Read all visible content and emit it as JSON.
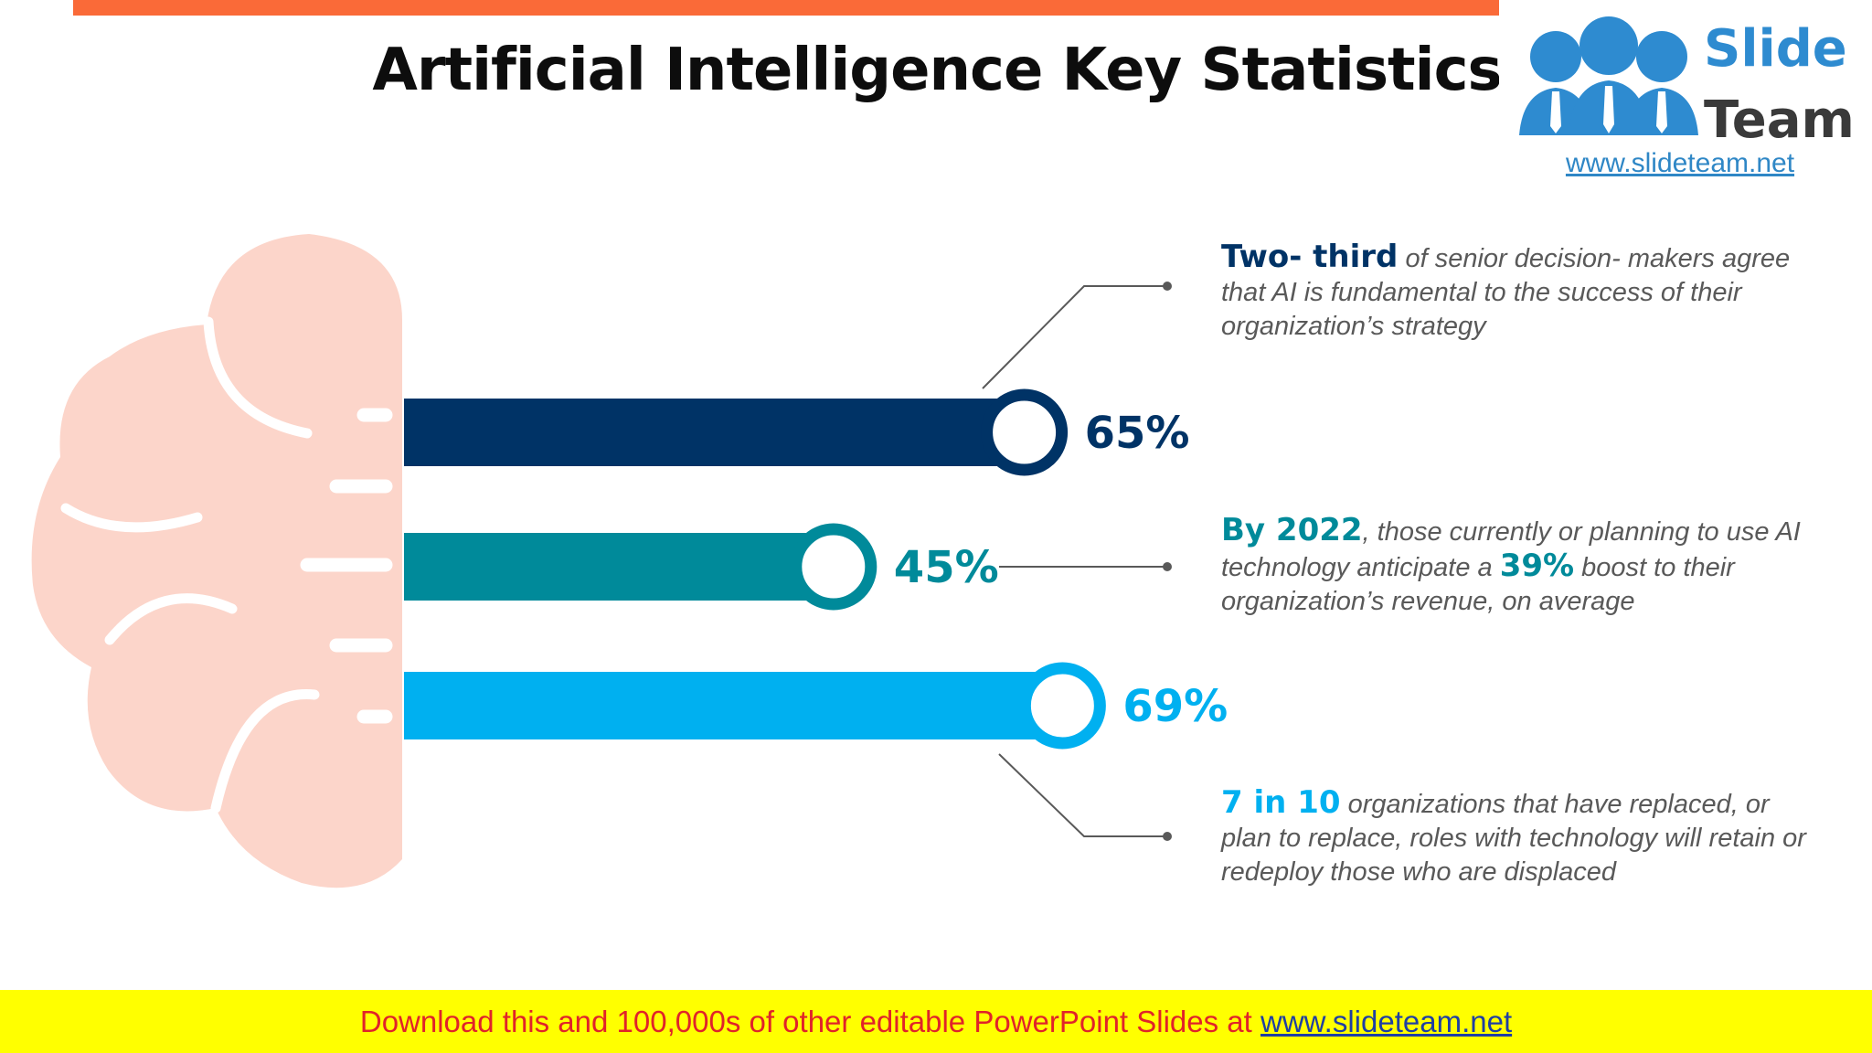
{
  "title": "Artificial Intelligence Key Statistics",
  "logo": {
    "word1": "Slide",
    "word2": "Team",
    "url": "www.slideteam.net"
  },
  "colors": {
    "navy": "#003366",
    "teal": "#008a9a",
    "cyan": "#00b0f0",
    "brain": "#fcd5ca",
    "accent_orange": "#fa6a38",
    "footer_bg": "#ffff00"
  },
  "chart_data": {
    "type": "bar",
    "orientation": "horizontal",
    "categories": [
      "",
      "",
      ""
    ],
    "values": [
      65,
      45,
      69
    ],
    "labels": [
      "65%",
      "45%",
      "69%"
    ],
    "xlim": [
      0,
      100
    ]
  },
  "stats": [
    {
      "highlight": "Two- third",
      "text": " of senior decision- makers agree that AI is fundamental to the success of their organization’s strategy"
    },
    {
      "highlight": "By 2022",
      "text1": ", those currently or planning to use AI technology anticipate a ",
      "highlight2": "39%",
      "text2": " boost to their organization’s revenue, on average"
    },
    {
      "highlight": "7 in 10",
      "text": " organizations that have replaced, or plan to replace, roles with technology will retain or redeploy those who are displaced"
    }
  ],
  "footer": {
    "text": "Download this and 100,000s of other editable PowerPoint Slides at ",
    "link": "www.slideteam.net"
  }
}
